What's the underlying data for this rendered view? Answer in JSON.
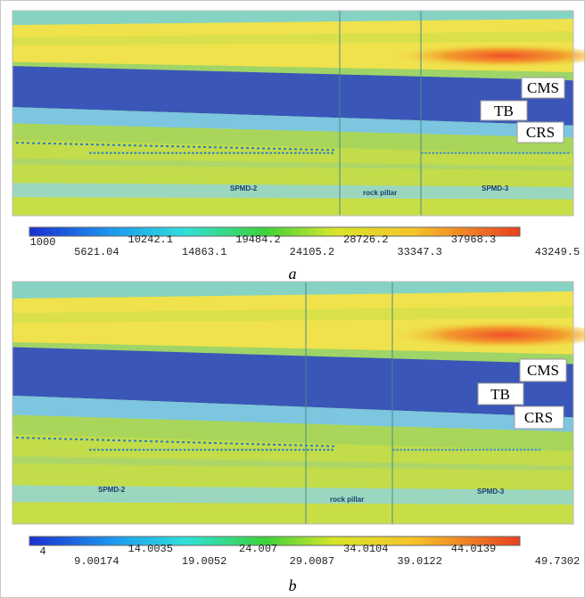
{
  "panels": [
    {
      "labels": [
        "CMS",
        "TB",
        "CRS"
      ],
      "annotations": [
        "SPMD-2",
        "rock pillar",
        "SPMD-3"
      ],
      "colorbar": {
        "ticks": [
          1000,
          5621.04,
          10242.1,
          14863.1,
          19484.2,
          24105.2,
          28726.2,
          33347.3,
          37968.3,
          43249.5
        ]
      },
      "caption": "a"
    },
    {
      "labels": [
        "CMS",
        "TB",
        "CRS"
      ],
      "annotations": [
        "SPMD-2",
        "rock pillar",
        "SPMD-3"
      ],
      "colorbar": {
        "ticks": [
          4,
          9.00174,
          14.0035,
          19.0052,
          24.007,
          29.0087,
          34.0104,
          39.0122,
          44.0139,
          49.7302
        ]
      },
      "caption": "b"
    }
  ]
}
